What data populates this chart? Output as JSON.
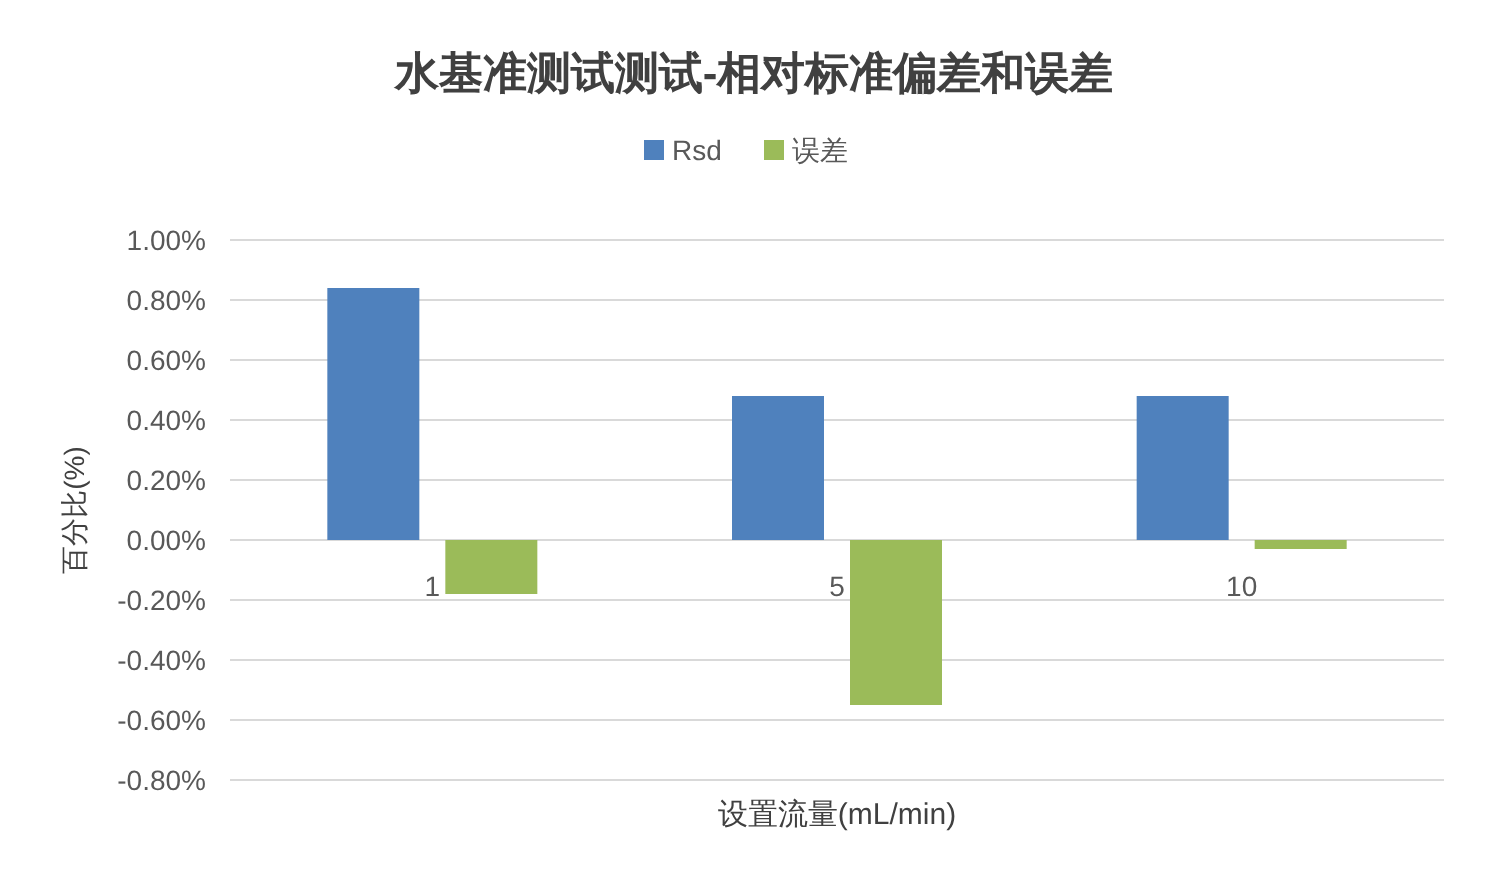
{
  "chart_data": {
    "type": "bar",
    "title": "水基准测试测试-相对标准偏差和误差",
    "xlabel": "设置流量(mL/min)",
    "ylabel": "百分比(%)",
    "categories": [
      "1",
      "5",
      "10"
    ],
    "series": [
      {
        "name": "Rsd",
        "color": "#4f81bd",
        "values": [
          0.84,
          0.48,
          0.48
        ]
      },
      {
        "name": "误差",
        "color": "#9bbb59",
        "values": [
          -0.18,
          -0.55,
          -0.03
        ]
      }
    ],
    "ylim": [
      -0.8,
      1.0
    ],
    "yticks": [
      {
        "value": -0.8,
        "label": "-0.80%"
      },
      {
        "value": -0.6,
        "label": "-0.60%"
      },
      {
        "value": -0.4,
        "label": "-0.40%"
      },
      {
        "value": -0.2,
        "label": "-0.20%"
      },
      {
        "value": 0,
        "label": "0.00%"
      },
      {
        "value": 0.2,
        "label": "0.20%"
      },
      {
        "value": 0.4,
        "label": "0.40%"
      },
      {
        "value": 0.6,
        "label": "0.60%"
      },
      {
        "value": 0.8,
        "label": "0.80%"
      },
      {
        "value": 1.0,
        "label": "1.00%"
      }
    ],
    "grid": "y",
    "legend": "top"
  }
}
